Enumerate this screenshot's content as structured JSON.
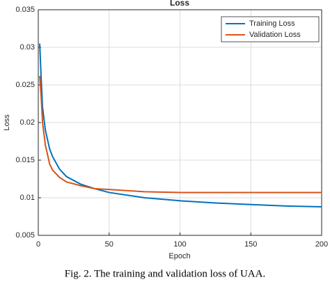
{
  "chart_data": {
    "type": "line",
    "title": "Loss",
    "xlabel": "Epoch",
    "ylabel": "Loss",
    "caption": "Fig. 2.  The training and validation loss of UAA.",
    "x": [
      1,
      2,
      3,
      5,
      8,
      10,
      15,
      20,
      30,
      40,
      50,
      75,
      100,
      125,
      150,
      175,
      200
    ],
    "series": [
      {
        "name": "Training Loss",
        "color": "#0072bd",
        "values": [
          0.0305,
          0.026,
          0.022,
          0.019,
          0.0165,
          0.0155,
          0.0138,
          0.0128,
          0.0118,
          0.0112,
          0.0107,
          0.01,
          0.0096,
          0.0093,
          0.0091,
          0.0089,
          0.0088
        ]
      },
      {
        "name": "Validation Loss",
        "color": "#d95319",
        "values": [
          0.0262,
          0.0235,
          0.02,
          0.017,
          0.0145,
          0.0137,
          0.0127,
          0.0121,
          0.0116,
          0.0112,
          0.0111,
          0.0108,
          0.0107,
          0.0107,
          0.0107,
          0.0107,
          0.0107
        ]
      }
    ],
    "xlim": [
      0,
      200
    ],
    "xticks": [
      0,
      50,
      100,
      150,
      200
    ],
    "ylim": [
      0.005,
      0.035
    ],
    "yticks": [
      0.005,
      0.01,
      0.015,
      0.02,
      0.025,
      0.03,
      0.035
    ],
    "grid": true,
    "legend": "upper right"
  }
}
